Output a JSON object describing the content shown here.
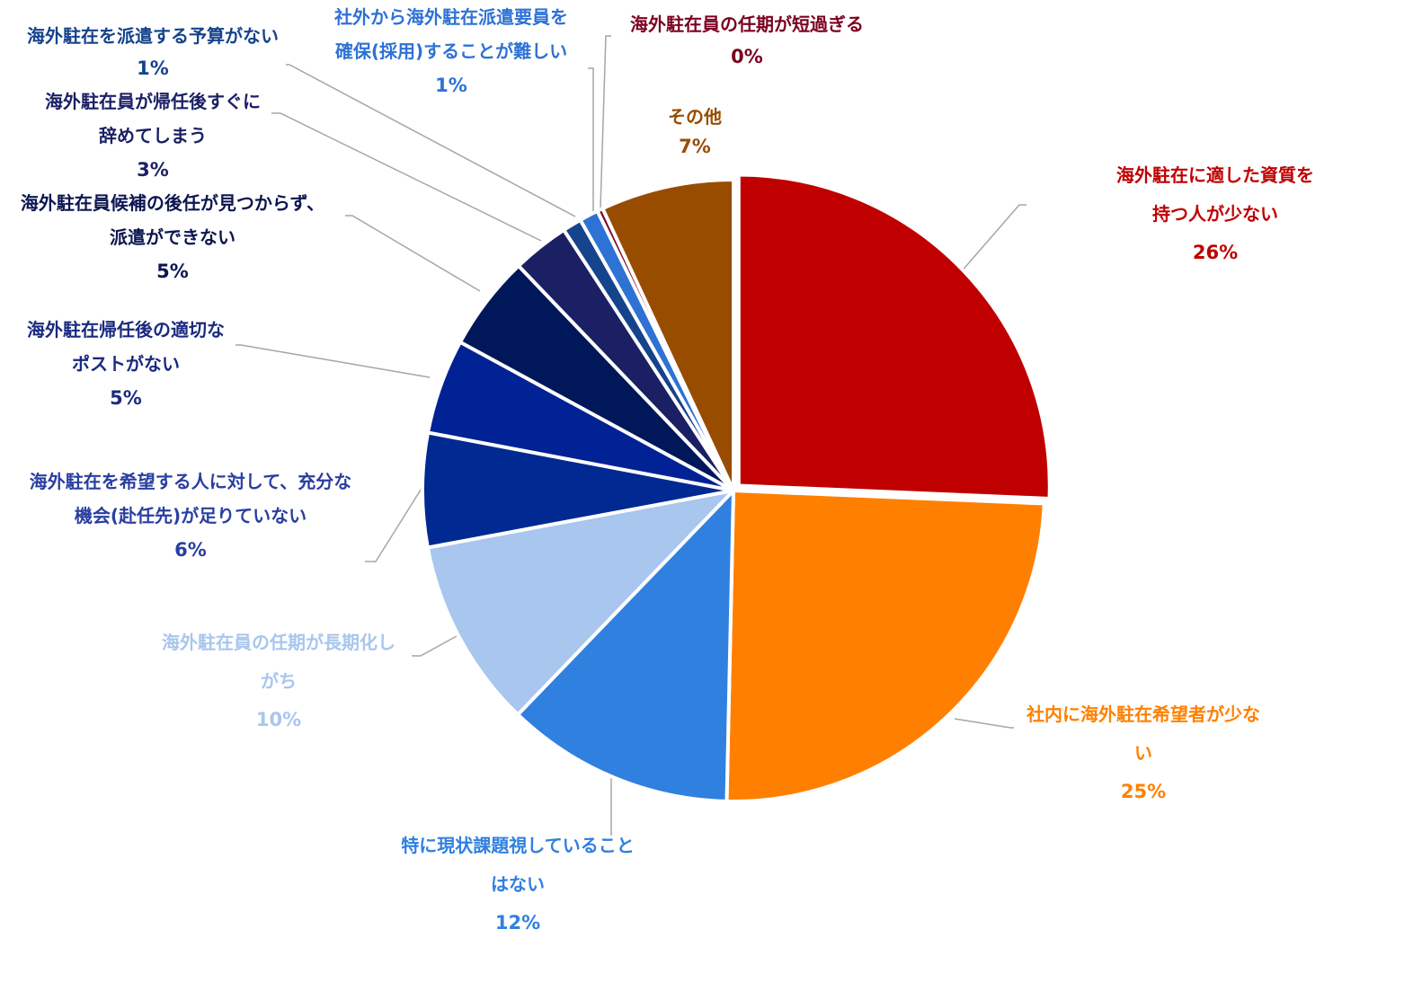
{
  "chart_data": {
    "type": "pie",
    "start_angle_deg": 0,
    "direction": "clockwise",
    "slices": [
      {
        "label_lines": [
          "海外駐在に適した資質を",
          "持つ人が少ない"
        ],
        "pct_label": "26%",
        "value": 26,
        "color": "#c00000",
        "label_color": "#c00000"
      },
      {
        "label_lines": [
          "社内に海外駐在希望者が少な",
          "い"
        ],
        "pct_label": "25%",
        "value": 25,
        "color": "#ff8000",
        "label_color": "#ff8000"
      },
      {
        "label_lines": [
          "特に現状課題視していること",
          "はない"
        ],
        "pct_label": "12%",
        "value": 12,
        "color": "#3080e0",
        "label_color": "#3080e0"
      },
      {
        "label_lines": [
          "海外駐在員の任期が長期化し",
          "がち"
        ],
        "pct_label": "10%",
        "value": 10,
        "color": "#a8c6ee",
        "label_color": "#a8c6ee"
      },
      {
        "label_lines": [
          "海外駐在を希望する人に対して、充分な",
          "機会(赴任先)が足りていない"
        ],
        "pct_label": "6%",
        "value": 6,
        "color": "#002a92",
        "label_color": "#2a3ea0"
      },
      {
        "label_lines": [
          "海外駐在帰任後の適切な",
          "ポストがない"
        ],
        "pct_label": "5%",
        "value": 5,
        "color": "#002294",
        "label_color": "#1a2a80"
      },
      {
        "label_lines": [
          "海外駐在員候補の後任が見つからず、",
          "派遣ができない"
        ],
        "pct_label": "5%",
        "value": 5,
        "color": "#00175a",
        "label_color": "#0c1650"
      },
      {
        "label_lines": [
          "海外駐在員が帰任後すぐに",
          "辞めてしまう"
        ],
        "pct_label": "3%",
        "value": 3,
        "color": "#1b2064",
        "label_color": "#1b2064"
      },
      {
        "label_lines": [
          "海外駐在を派遣する予算がない"
        ],
        "pct_label": "1%",
        "value": 1,
        "color": "#15438c",
        "label_color": "#15438c"
      },
      {
        "label_lines": [
          "社外から海外駐在派遣要員を",
          "確保(採用)することが難しい"
        ],
        "pct_label": "1%",
        "value": 1,
        "color": "#2e72d4",
        "label_color": "#2e72d4"
      },
      {
        "label_lines": [
          "海外駐在員の任期が短過ぎる"
        ],
        "pct_label": "0%",
        "value": 0.3,
        "color": "#7b0020",
        "label_color": "#7b0020"
      },
      {
        "label_lines": [
          "その他"
        ],
        "pct_label": "7%",
        "value": 7,
        "color": "#984c00",
        "label_color": "#984c00"
      }
    ]
  }
}
